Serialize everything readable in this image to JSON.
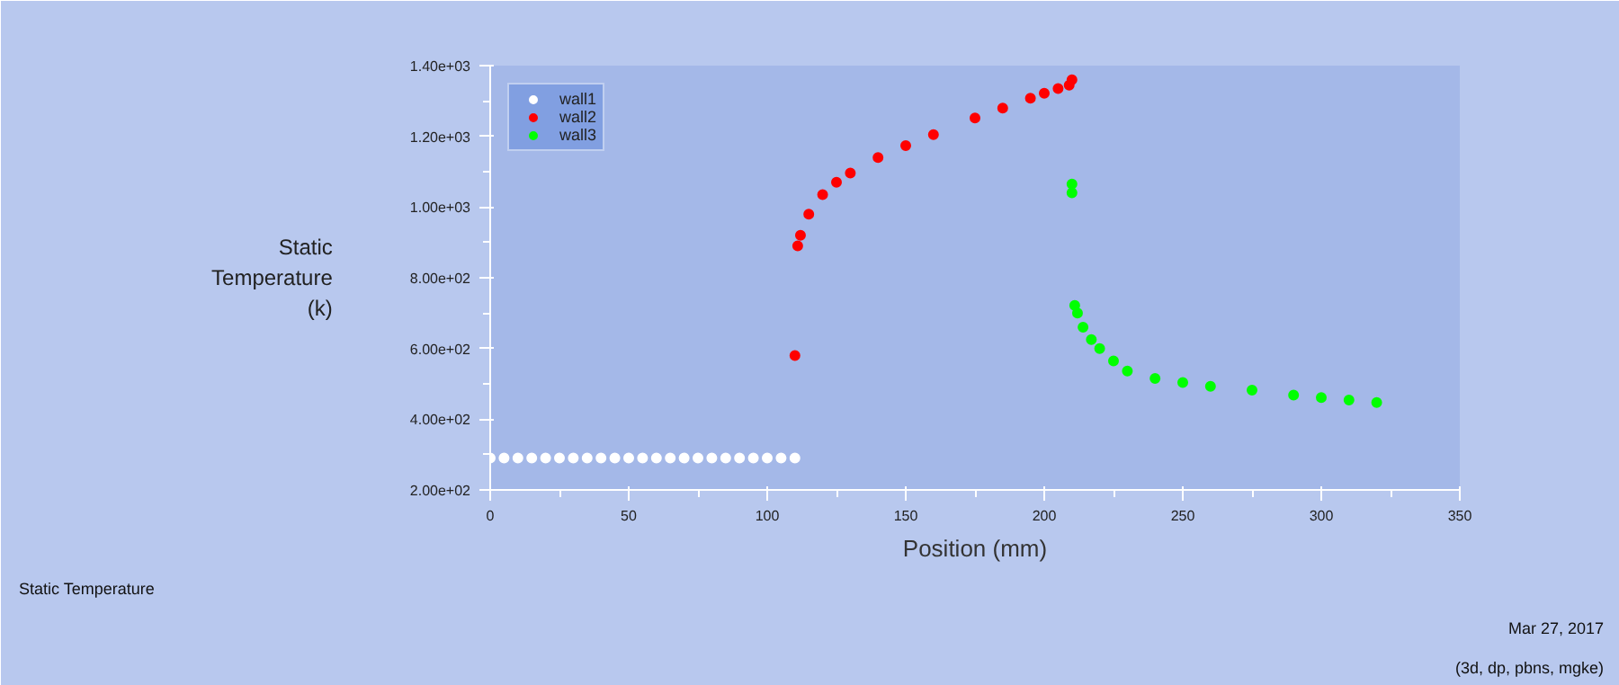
{
  "chart_data": {
    "type": "scatter",
    "title": null,
    "xlabel": "Position (mm)",
    "ylabel": "Static\nTemperature\n(k)",
    "xlim": [
      0,
      350
    ],
    "ylim": [
      200,
      1400
    ],
    "xticks": [
      0,
      50,
      100,
      150,
      200,
      250,
      300,
      350
    ],
    "yticks": [
      {
        "value": 200,
        "label": "2.00e+02"
      },
      {
        "value": 400,
        "label": "4.00e+02"
      },
      {
        "value": 600,
        "label": "6.00e+02"
      },
      {
        "value": 800,
        "label": "8.00e+02"
      },
      {
        "value": 1000,
        "label": "1.00e+03"
      },
      {
        "value": 1200,
        "label": "1.20e+03"
      },
      {
        "value": 1400,
        "label": "1.40e+03"
      }
    ],
    "grid": false,
    "legend": "top left",
    "marker": "circle",
    "series": [
      {
        "name": "wall1",
        "color": "#ffffff",
        "x": [
          0,
          5,
          10,
          15,
          20,
          25,
          30,
          35,
          40,
          45,
          50,
          55,
          60,
          65,
          70,
          75,
          80,
          85,
          90,
          95,
          100,
          105,
          110
        ],
        "values": [
          290,
          290,
          290,
          290,
          290,
          290,
          290,
          290,
          290,
          290,
          290,
          290,
          290,
          290,
          290,
          290,
          290,
          290,
          290,
          290,
          290,
          290,
          290
        ]
      },
      {
        "name": "wall2",
        "color": "#ff0000",
        "x": [
          110,
          111,
          112,
          115,
          120,
          125,
          130,
          140,
          150,
          160,
          175,
          185,
          195,
          200,
          205,
          209,
          210
        ],
        "values": [
          580,
          890,
          920,
          980,
          1035,
          1070,
          1096,
          1140,
          1174,
          1205,
          1252,
          1280,
          1308,
          1322,
          1335,
          1345,
          1360
        ]
      },
      {
        "name": "wall3",
        "color": "#00ff00",
        "x": [
          210,
          210,
          211,
          212,
          214,
          217,
          220,
          225,
          230,
          240,
          250,
          260,
          275,
          290,
          300,
          310,
          320
        ],
        "values": [
          1040,
          1065,
          722,
          700,
          660,
          625,
          600,
          565,
          536,
          515,
          504,
          493,
          482,
          468,
          461,
          454,
          447
        ]
      }
    ],
    "annotations": [
      "Static Temperature",
      "Mar 27, 2017",
      "(3d, dp, pbns, mgke)"
    ]
  }
}
